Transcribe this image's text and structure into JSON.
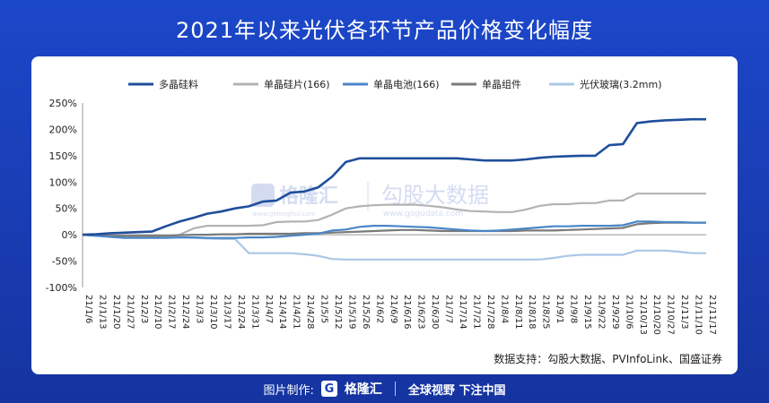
{
  "title": "2021年以来光伏各环节产品价格变化幅度",
  "source": "数据支持：勾股大数据、PVInfoLink、国盛证券",
  "watermark": {
    "brand": "格隆汇",
    "brand_url": "www.gelonghui.com",
    "partner": "勾股大数据",
    "partner_url": "www.gogudata.com"
  },
  "footer": {
    "made_by": "图片制作:",
    "brand": "格隆汇",
    "slogan": "全球视野 下注中国"
  },
  "colors": {
    "多晶硅料": "#1f4e9c",
    "单晶硅片(166)": "#b3b3b3",
    "单晶电池(166)": "#4a86c8",
    "单晶组件": "#7a7a7a",
    "光伏玻璃(3.2mm)": "#aac7e6"
  },
  "chart_data": {
    "type": "line",
    "xlabel": "",
    "ylabel": "",
    "ylim": [
      -100,
      250
    ],
    "yticks": [
      "250%",
      "200%",
      "150%",
      "100%",
      "50%",
      "0%",
      "-50%",
      "-100%"
    ],
    "ytick_values": [
      250,
      200,
      150,
      100,
      50,
      0,
      -50,
      -100
    ],
    "grid": false,
    "legend": "top",
    "x": [
      "21/1/6",
      "21/1/13",
      "21/1/20",
      "21/1/27",
      "21/2/3",
      "21/2/10",
      "21/2/17",
      "21/2/24",
      "21/3/3",
      "21/3/10",
      "21/3/17",
      "21/3/24",
      "21/3/31",
      "21/4/7",
      "21/4/14",
      "21/4/21",
      "21/4/28",
      "21/5/5",
      "21/5/12",
      "21/5/19",
      "21/5/26",
      "21/6/2",
      "21/6/9",
      "21/6/16",
      "21/6/23",
      "21/6/30",
      "21/7/7",
      "21/7/14",
      "21/7/21",
      "21/7/28",
      "21/8/4",
      "21/8/11",
      "21/8/18",
      "21/8/25",
      "21/9/1",
      "21/9/8",
      "21/9/15",
      "21/9/22",
      "21/9/29",
      "21/10/6",
      "21/10/13",
      "21/10/20",
      "21/10/27",
      "21/11/3",
      "21/11/10",
      "21/11/17"
    ],
    "xticks_shown": [
      "21/1/6",
      "21/1/13",
      "21/1/20",
      "21/1/27",
      "21/2/3",
      "21/2/10",
      "21/2/17",
      "21/2/24",
      "21/3/3",
      "21/3/10",
      "21/3/17",
      "21/3/24",
      "21/3/31",
      "21/4/7",
      "21/4/14",
      "21/4/21",
      "21/4/28",
      "21/5/5",
      "21/5/12",
      "21/5/19",
      "21/5/26",
      "21/6/2",
      "21/6/9",
      "21/6/16",
      "21/6/23",
      "21/6/30",
      "21/7/7",
      "21/7/14",
      "21/7/21",
      "21/7/28",
      "21/8/4",
      "21/8/11",
      "21/8/18",
      "21/8/25",
      "21/9/1",
      "21/9/8",
      "21/9/15",
      "21/9/22",
      "21/9/29",
      "21/10/6",
      "21/10/13",
      "21/10/20",
      "21/10/27",
      "21/11/3",
      "21/11/10",
      "21/11/17"
    ],
    "series": [
      {
        "name": "多晶硅料",
        "values": [
          0,
          1,
          3,
          4,
          5,
          6,
          16,
          25,
          32,
          40,
          44,
          50,
          54,
          63,
          65,
          80,
          82,
          90,
          110,
          138,
          145,
          145,
          145,
          145,
          145,
          145,
          145,
          145,
          143,
          141,
          141,
          141,
          143,
          146,
          148,
          149,
          150,
          150,
          170,
          172,
          212,
          215,
          217,
          218,
          219,
          219
        ]
      },
      {
        "name": "单晶硅片(166)",
        "values": [
          0,
          -2,
          -3,
          -4,
          -4,
          -4,
          -2,
          0,
          12,
          17,
          17,
          17,
          17,
          18,
          24,
          25,
          25,
          28,
          38,
          50,
          54,
          56,
          57,
          57,
          57,
          55,
          52,
          48,
          45,
          44,
          43,
          43,
          48,
          55,
          58,
          58,
          60,
          60,
          65,
          65,
          78,
          78,
          78,
          78,
          78,
          78
        ]
      },
      {
        "name": "单晶电池(166)",
        "values": [
          0,
          -2,
          -4,
          -6,
          -6,
          -6,
          -6,
          -5,
          -5,
          -6,
          -6,
          -6,
          -5,
          -5,
          -4,
          -2,
          0,
          2,
          8,
          10,
          15,
          17,
          17,
          16,
          15,
          14,
          12,
          10,
          8,
          7,
          8,
          10,
          12,
          14,
          16,
          16,
          17,
          17,
          17,
          18,
          25,
          25,
          24,
          24,
          23,
          23
        ]
      },
      {
        "name": "单晶组件",
        "values": [
          0,
          -1,
          -2,
          -2,
          -2,
          -2,
          -2,
          -1,
          0,
          0,
          1,
          1,
          2,
          2,
          2,
          2,
          3,
          3,
          4,
          5,
          6,
          7,
          8,
          9,
          9,
          8,
          7,
          7,
          7,
          7,
          7,
          7,
          8,
          8,
          8,
          9,
          10,
          11,
          12,
          13,
          20,
          22,
          23,
          23,
          23,
          23
        ]
      },
      {
        "name": "光伏玻璃(3.2mm)",
        "values": [
          0,
          -2,
          -3,
          -5,
          -5,
          -5,
          -5,
          -5,
          -6,
          -7,
          -8,
          -8,
          -35,
          -35,
          -35,
          -35,
          -37,
          -40,
          -46,
          -47,
          -47,
          -47,
          -47,
          -47,
          -47,
          -47,
          -47,
          -47,
          -47,
          -47,
          -47,
          -47,
          -47,
          -47,
          -44,
          -40,
          -38,
          -38,
          -38,
          -38,
          -30,
          -30,
          -30,
          -32,
          -35,
          -35
        ]
      }
    ]
  }
}
